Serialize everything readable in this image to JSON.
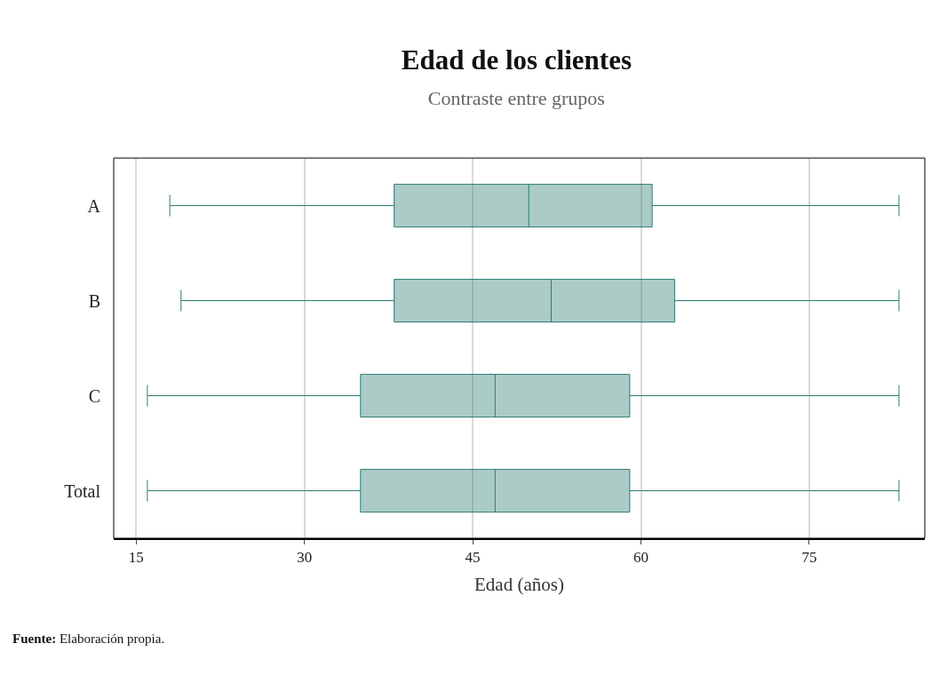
{
  "chart_data": {
    "type": "box",
    "title": "Edad de los clientes",
    "subtitle": "Contraste entre grupos",
    "xlabel": "Edad (años)",
    "orientation": "horizontal",
    "categories": [
      "A",
      "B",
      "C",
      "Total"
    ],
    "boxes": [
      {
        "low": 18,
        "q1": 38,
        "median": 50,
        "q3": 61,
        "high": 83
      },
      {
        "low": 19,
        "q1": 38,
        "median": 52,
        "q3": 63,
        "high": 83
      },
      {
        "low": 16,
        "q1": 35,
        "median": 47,
        "q3": 59,
        "high": 83
      },
      {
        "low": 16,
        "q1": 35,
        "median": 47,
        "q3": 59,
        "high": 83
      }
    ],
    "color": "#2e7d71",
    "xlim": [
      13,
      85.3
    ],
    "xticks": [
      15,
      30,
      45,
      60,
      75
    ],
    "grid": "x",
    "annotations": [
      "Fuente: Elaboración propia."
    ]
  }
}
